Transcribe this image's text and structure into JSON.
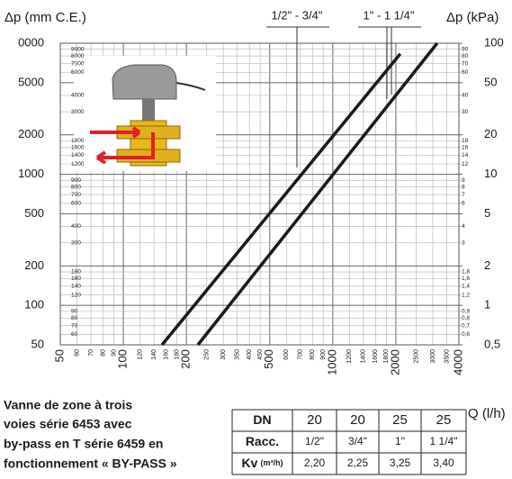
{
  "chart_data": {
    "type": "line",
    "log_x": true,
    "log_y": true,
    "grid": true,
    "y_label": "Δp (mm C.E.)",
    "y2_label": "Δp (kPa)",
    "x_label": "Q (l/h)",
    "xlim": [
      50,
      4000
    ],
    "ylim": [
      50,
      10000
    ],
    "y2lim": [
      0.5,
      100
    ],
    "xticks": [
      50,
      100,
      200,
      500,
      1000,
      2000,
      4000
    ],
    "xticks_minor": [
      60,
      70,
      80,
      90,
      120,
      140,
      160,
      180,
      250,
      300,
      350,
      400,
      450,
      600,
      700,
      800,
      900,
      1200,
      1400,
      1600,
      1800,
      2500,
      3000,
      3500
    ],
    "yticks": [
      50,
      100,
      200,
      500,
      1000,
      2000,
      5000,
      {
        "value": 10000,
        "label": "0000"
      }
    ],
    "yticks_minor": [
      60,
      70,
      80,
      90,
      120,
      140,
      160,
      180,
      300,
      400,
      600,
      700,
      800,
      900,
      1200,
      1400,
      1600,
      1800,
      3000,
      4000,
      6000,
      7000,
      8000,
      9000
    ],
    "y2ticks": [
      {
        "value": 0.5,
        "label": "0,5"
      },
      1,
      2,
      5,
      10,
      20,
      50,
      100
    ],
    "y2ticks_minor": [
      {
        "value": 0.6,
        "label": "0,6"
      },
      {
        "value": 0.7,
        "label": "0,7"
      },
      {
        "value": 0.8,
        "label": "0,8"
      },
      {
        "value": 0.9,
        "label": "0,9"
      },
      {
        "value": 1.2,
        "label": "1,2"
      },
      {
        "value": 1.4,
        "label": "1,4"
      },
      {
        "value": 1.6,
        "label": "1,6"
      },
      {
        "value": 1.8,
        "label": "1,8"
      },
      3,
      4,
      6,
      7,
      8,
      9,
      12,
      14,
      16,
      18,
      30,
      40,
      60,
      70,
      80,
      90
    ],
    "series": [
      {
        "name": "1/2\" - 3/4\"",
        "color": "#1a1a1a",
        "x": [
          153,
          2100
        ],
        "values": [
          50,
          8300
        ]
      },
      {
        "name": "1\" - 1 1/4\"",
        "color": "#1a1a1a",
        "x": [
          227,
          3150
        ],
        "values": [
          50,
          10000
        ]
      }
    ]
  },
  "caption": [
    "Vanne de zone à trois",
    "voies série 6453 avec",
    "by-pass en T série 6459 en",
    "fonctionnement « BY-PASS »"
  ],
  "table": {
    "rows": [
      {
        "label": "DN",
        "cells": [
          "20",
          "20",
          "25",
          "25"
        ]
      },
      {
        "label": "Racc.",
        "cells": [
          "1/2\"",
          "3/4\"",
          "1\"",
          "1 1/4\""
        ]
      },
      {
        "label": "Kv",
        "unit": "(m³/h)",
        "cells": [
          "2,20",
          "2,25",
          "3,25",
          "3,40"
        ]
      }
    ]
  }
}
